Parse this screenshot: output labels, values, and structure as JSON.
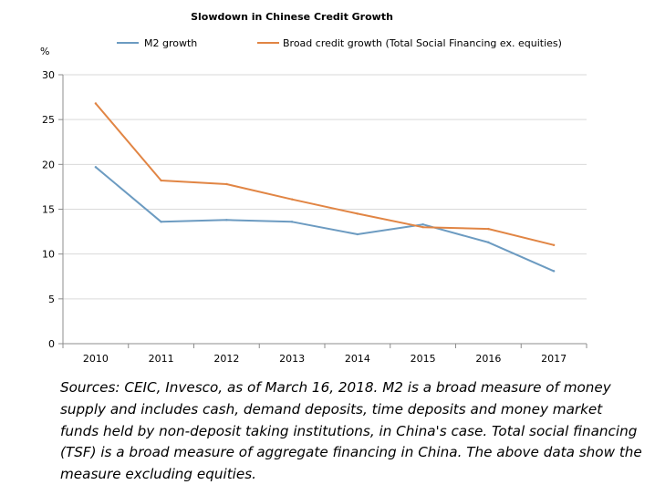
{
  "chart_data": {
    "type": "line",
    "title": "Slowdown in Chinese Credit Growth",
    "ylabel": "%",
    "xlabel": "",
    "categories": [
      "2010",
      "2011",
      "2012",
      "2013",
      "2014",
      "2015",
      "2016",
      "2017"
    ],
    "ylim": [
      0,
      30
    ],
    "yticks": [
      0,
      5,
      10,
      15,
      20,
      25,
      30
    ],
    "grid": true,
    "legend_position": "top",
    "series": [
      {
        "name": "M2 growth",
        "color": "#6C9BC1",
        "values": [
          19.7,
          13.6,
          13.8,
          13.6,
          12.2,
          13.3,
          11.3,
          8.1
        ]
      },
      {
        "name": "Broad credit growth (Total Social Financing ex. equities)",
        "color": "#E18544",
        "values": [
          26.8,
          18.2,
          17.8,
          16.1,
          14.5,
          13.0,
          12.8,
          11.0
        ]
      }
    ]
  },
  "caption": "Sources: CEIC, Invesco, as of March 16, 2018. M2 is a broad measure of money supply and includes cash, demand deposits, time deposits and money market funds held by non-deposit taking institutions, in China's case. Total social financing (TSF) is a broad measure of aggregate financing in China. The above data show the measure excluding equities."
}
